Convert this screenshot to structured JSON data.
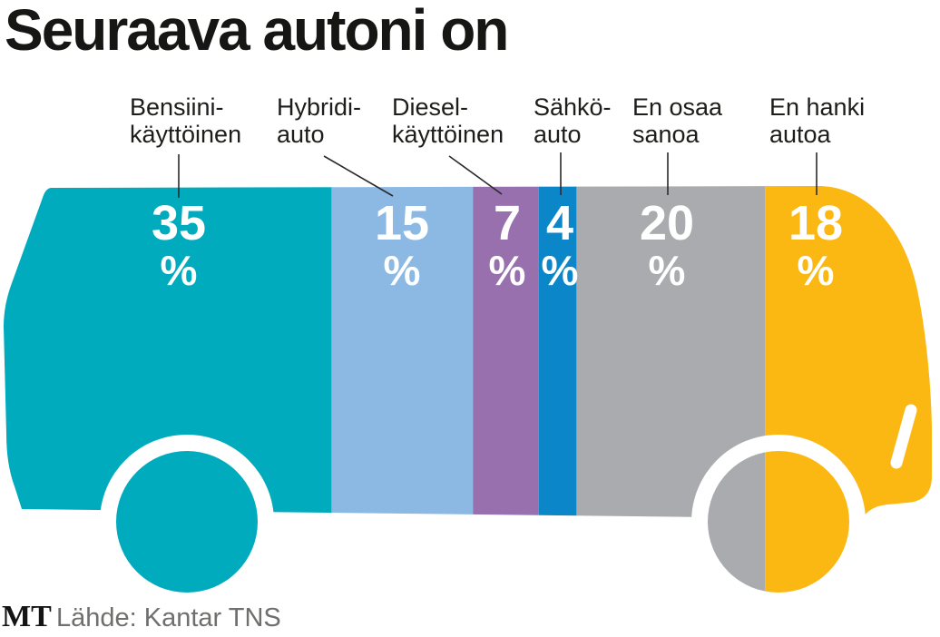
{
  "title": "Seuraava autoni on",
  "footer": {
    "logo": "MT",
    "source": "Lähde: Kantar TNS"
  },
  "chart_data": {
    "type": "bar",
    "variant": "horizontal stacked pictogram shaped like a van, wheels colored by underlying segment",
    "title": "Seuraava autoni on",
    "unit": "%",
    "categories": [
      "Bensiini-käyttöinen",
      "Hybridi-auto",
      "Diesel-käyttöinen",
      "Sähkö-auto",
      "En osaa sanoa",
      "En hanki autoa"
    ],
    "values": [
      35,
      15,
      7,
      4,
      20,
      18
    ],
    "label_lines": [
      [
        "Bensiini-",
        "käyttöinen"
      ],
      [
        "Hybridi-",
        "auto"
      ],
      [
        "Diesel-",
        "käyttöinen"
      ],
      [
        "Sähkö-",
        "auto"
      ],
      [
        "En osaa",
        "sanoa"
      ],
      [
        "En hanki",
        "autoa"
      ]
    ],
    "colors": [
      "#00abbe",
      "#8cb9e4",
      "#9770ad",
      "#0a86c9",
      "#a9abae",
      "#fbb813"
    ],
    "value_label_color": "#ffffff",
    "label_color": "#1d1d1b",
    "legend_position": "labels above segments with leader lines",
    "source": "Lähde: Kantar TNS"
  }
}
